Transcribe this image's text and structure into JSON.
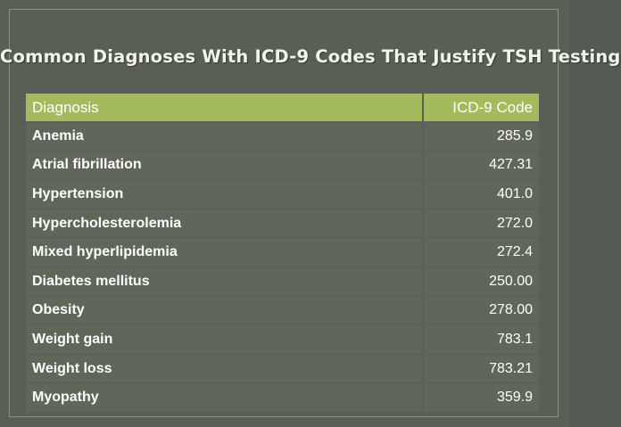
{
  "slide": {
    "title": "Common Diagnoses With ICD-9 Codes That Justify TSH Testing"
  },
  "table": {
    "headers": {
      "diagnosis": "Diagnosis",
      "code": "ICD-9 Code"
    },
    "rows": [
      {
        "diagnosis": "Anemia",
        "code": "285.9"
      },
      {
        "diagnosis": "Atrial fibrillation",
        "code": "427.31"
      },
      {
        "diagnosis": "Hypertension",
        "code": "401.0"
      },
      {
        "diagnosis": "Hypercholesterolemia",
        "code": "272.0"
      },
      {
        "diagnosis": "Mixed hyperlipidemia",
        "code": "272.4"
      },
      {
        "diagnosis": "Diabetes mellitus",
        "code": "250.00"
      },
      {
        "diagnosis": "Obesity",
        "code": "278.00"
      },
      {
        "diagnosis": "Weight gain",
        "code": "783.1"
      },
      {
        "diagnosis": "Weight loss",
        "code": "783.21"
      },
      {
        "diagnosis": "Myopathy",
        "code": "359.9"
      }
    ]
  },
  "colors": {
    "background": "#5a5f55",
    "header_band": "#a4bb5d",
    "text": "#ffffff"
  }
}
